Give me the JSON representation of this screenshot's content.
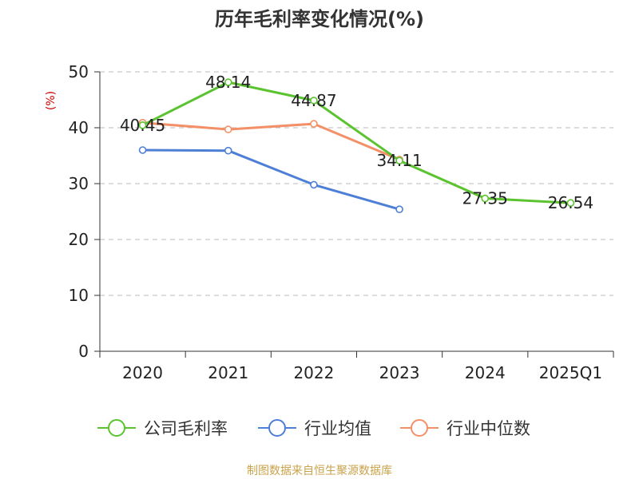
{
  "chart_data": {
    "type": "line",
    "title": "历年毛利率变化情况(%)",
    "unit_label": "(%)",
    "categories": [
      "2020",
      "2021",
      "2022",
      "2023",
      "2024",
      "2025Q1"
    ],
    "ylim": [
      0,
      50
    ],
    "yticks": [
      "0",
      "10",
      "20",
      "30",
      "40",
      "50"
    ],
    "grid": true,
    "legend_position": "bottom",
    "series": [
      {
        "name": "公司毛利率",
        "color": "#5ac32f",
        "values": [
          40.45,
          48.14,
          44.87,
          34.11,
          27.35,
          26.54
        ],
        "labels": [
          "40.45",
          "48.14",
          "44.87",
          "34.11",
          "27.35",
          "26.54"
        ]
      },
      {
        "name": "行业均值",
        "color": "#4e7fd6",
        "values": [
          36.0,
          35.9,
          29.8,
          25.4,
          null,
          null
        ]
      },
      {
        "name": "行业中位数",
        "color": "#f39067",
        "values": [
          40.9,
          39.7,
          40.7,
          34.3,
          null,
          null
        ]
      }
    ],
    "source": "制图数据来自恒生聚源数据库"
  }
}
